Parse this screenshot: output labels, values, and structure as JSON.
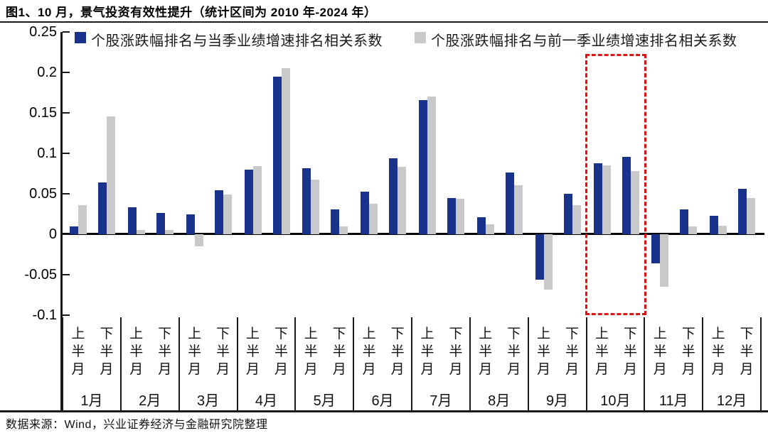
{
  "title": "图1、10 月，景气投资有效性提升（统计区间为 2010 年-2024 年）",
  "source": "数据来源：Wind，兴业证券经济与金融研究院整理",
  "legend": [
    {
      "label": "个股涨跌幅排名与当季业绩增速排名相关系数",
      "color": "#19338C"
    },
    {
      "label": "个股涨跌幅排名与前一季业绩增速排名相关系数",
      "color": "#C9C9C9"
    }
  ],
  "colors": {
    "series_current": "#19338C",
    "series_previous": "#C9C9C9",
    "highlight_red": "#DE1111",
    "axis": "#1a1a1a"
  },
  "chart_data": {
    "type": "bar",
    "title": "图1、10 月，景气投资有效性提升（统计区间为 2010 年-2024 年）",
    "months": [
      "1月",
      "2月",
      "3月",
      "4月",
      "5月",
      "6月",
      "7月",
      "8月",
      "9月",
      "10月",
      "11月",
      "12月"
    ],
    "half_labels": [
      "上半月",
      "下半月"
    ],
    "y_ticks": [
      {
        "value": 0.25,
        "label": "0.25"
      },
      {
        "value": 0.2,
        "label": "0.2"
      },
      {
        "value": 0.15,
        "label": "0.15"
      },
      {
        "value": 0.1,
        "label": "0.1"
      },
      {
        "value": 0.05,
        "label": "0.05"
      },
      {
        "value": 0,
        "label": "0"
      },
      {
        "value": -0.05,
        "label": "-0.05"
      },
      {
        "value": -0.1,
        "label": "-0.1"
      }
    ],
    "ylim": [
      -0.1,
      0.25
    ],
    "grid": false,
    "legend_position": "top",
    "series": [
      {
        "key": "current-quarter",
        "name": "个股涨跌幅排名与当季业绩增速排名相关系数",
        "color": "#19338C",
        "values": [
          0.01,
          0.064,
          0.033,
          0.026,
          0.025,
          0.054,
          0.08,
          0.195,
          0.082,
          0.031,
          0.053,
          0.094,
          0.166,
          0.045,
          0.021,
          0.076,
          -0.056,
          0.05,
          0.088,
          0.096,
          -0.036,
          0.031,
          0.023,
          0.056
        ]
      },
      {
        "key": "previous-quarter",
        "name": "个股涨跌幅排名与前一季业绩增速排名相关系数",
        "color": "#C9C9C9",
        "values": [
          0.036,
          0.146,
          0.005,
          0.005,
          -0.015,
          0.049,
          0.084,
          0.205,
          0.068,
          0.01,
          0.038,
          0.083,
          0.17,
          0.044,
          0.012,
          0.061,
          -0.068,
          0.036,
          0.085,
          0.078,
          -0.065,
          0.01,
          0.011,
          0.045
        ]
      }
    ],
    "highlight": {
      "month": "10月",
      "style": "red-dashed-box"
    }
  }
}
